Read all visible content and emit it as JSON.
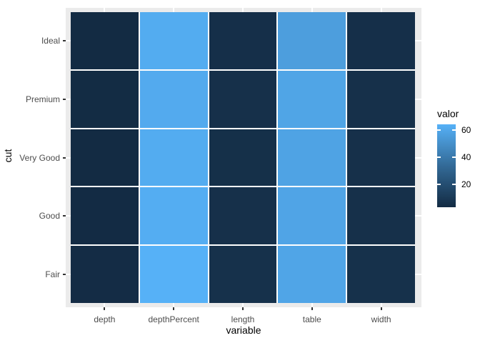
{
  "chart_data": {
    "type": "heatmap",
    "title": "",
    "xlabel": "variable",
    "ylabel": "cut",
    "x_categories": [
      "depth",
      "depthPercent",
      "length",
      "table",
      "width"
    ],
    "y_categories": [
      "Ideal",
      "Premium",
      "Very Good",
      "Good",
      "Fair"
    ],
    "values": [
      [
        3.4,
        61.71,
        5.51,
        55.95,
        5.52
      ],
      [
        3.65,
        61.26,
        5.97,
        58.75,
        5.94
      ],
      [
        3.56,
        61.82,
        5.74,
        57.96,
        5.77
      ],
      [
        3.64,
        62.37,
        5.84,
        58.69,
        5.85
      ],
      [
        3.98,
        64.04,
        6.25,
        59.05,
        6.18
      ]
    ],
    "value_domain": [
      3.4,
      64.04
    ],
    "legend": {
      "title": "valor",
      "ticks": [
        60,
        40,
        20
      ],
      "position": "right"
    },
    "colors": {
      "gradient_low": "#132B43",
      "gradient_mid": "#336A97",
      "gradient_high": "#56B1F7",
      "panel_bg": "#EBEBEB",
      "gridline": "#FFFFFF",
      "tile_gap": "#FFFFFF",
      "tick_mark": "#333333",
      "tick_label": "#4D4D4D",
      "title_text": "#000000"
    },
    "layout": {
      "grid": "major-only-at-category-centers",
      "legend_position": "right",
      "rows": 5,
      "cols": 5
    }
  }
}
